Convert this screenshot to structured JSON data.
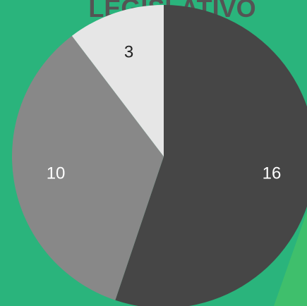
{
  "chart_data": {
    "type": "pie",
    "title": "LEGISLATIVO",
    "categories": [
      null,
      null,
      null
    ],
    "values": [
      16,
      10,
      3
    ],
    "colors": [
      "#464646",
      "#888888",
      "#e6e6e6"
    ],
    "label_colors": [
      "#ffffff",
      "#ffffff",
      "#222222"
    ]
  }
}
